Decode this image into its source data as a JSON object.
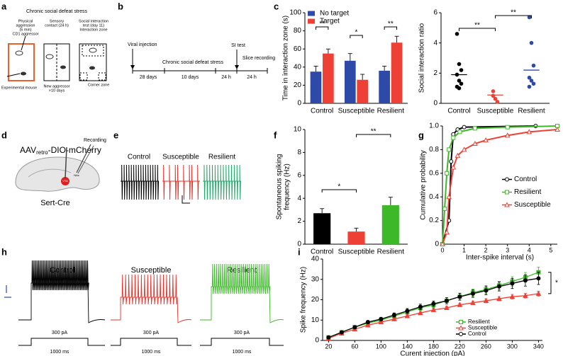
{
  "panel_labels": [
    "a",
    "b",
    "c",
    "d",
    "e",
    "f",
    "g",
    "h",
    "i"
  ],
  "panel_a": {
    "title": "Chronic social defeat stress",
    "box1": [
      "Physical",
      "aggression",
      "(5 min)",
      "CD1 aggressor"
    ],
    "box2": [
      "Sensory",
      "contact (24 h)"
    ],
    "box3": [
      "Social interaction",
      "test (day 11)",
      "Interaction zone"
    ],
    "experimental": "Experimental mouse",
    "new_aggressor": [
      "New aggressor",
      "×10 days"
    ],
    "corner": "Corner zone"
  },
  "panel_b": {
    "viral": "Viral injection",
    "csds": "Chronic social defeat stress",
    "si": "SI test",
    "slice": "Slice recording",
    "periods": [
      "28 days",
      "10 days",
      "24 h",
      "24 h"
    ]
  },
  "panel_d": {
    "vector": [
      "AAV",
      "retro",
      "-DIO-mCherry"
    ],
    "recording": "Recording",
    "line": "Sert-Cre",
    "regions": [
      "NAc",
      "VTA"
    ]
  },
  "panel_e": {
    "groups": [
      "Control",
      "Susceptible",
      "Resilient"
    ]
  },
  "panel_h": {
    "groups": [
      "Control",
      "Susceptible",
      "Resilient"
    ],
    "current": [
      "300 pA",
      "300 pA",
      "300 pA"
    ],
    "duration": [
      "1000 ms",
      "1000 ms",
      "1000 ms"
    ]
  },
  "chart_data": [
    {
      "type": "bar",
      "ylabel": "Time in interaction zone (s)",
      "categories": [
        "Control",
        "Susceptible",
        "Resilient"
      ],
      "series": [
        {
          "name": "No target",
          "color": "#2e4aa8",
          "values": [
            35,
            47,
            36
          ],
          "errors": [
            6,
            8,
            5
          ]
        },
        {
          "name": "Target",
          "color": "#ee4035",
          "values": [
            55,
            26,
            67
          ],
          "errors": [
            5,
            6,
            7
          ]
        }
      ],
      "ylim": [
        0,
        100
      ],
      "yticks": [
        0,
        20,
        40,
        60,
        80,
        100
      ],
      "legend": "upper left",
      "annotations": [
        "**",
        "*",
        "**"
      ]
    },
    {
      "type": "dot",
      "ylabel": "Social interaction ratio",
      "categories": [
        "Control",
        "Susceptible",
        "Resilient"
      ],
      "colors": [
        "#000000",
        "#ee4035",
        "#2e4aa8"
      ],
      "values": [
        1.9,
        0.55,
        2.2
      ],
      "points": [
        [
          4.6,
          2.6,
          2.2,
          1.9,
          1.5,
          1.3,
          1.1,
          1.0
        ],
        [
          0.8,
          0.3,
          0.1,
          0.5
        ],
        [
          5.7,
          4.0,
          2.5,
          1.7,
          1.5,
          1.3,
          1.1
        ]
      ],
      "ylim": [
        0,
        6
      ],
      "yticks": [
        0,
        2,
        4,
        6
      ],
      "annotations": [
        "**",
        "**"
      ]
    },
    {
      "type": "bar",
      "ylabel": [
        "Spontaneous spiking",
        "frequency (Hz)"
      ],
      "categories": [
        "Control",
        "Susceptible",
        "Resilient"
      ],
      "colors": [
        "#000000",
        "#ee4035",
        "#3cb828"
      ],
      "values": [
        2.7,
        1.1,
        3.4
      ],
      "errors": [
        0.4,
        0.3,
        0.7
      ],
      "ylim": [
        0,
        10
      ],
      "yticks": [
        0,
        2,
        4,
        6,
        8,
        10
      ],
      "annotations": [
        "*",
        "**"
      ]
    },
    {
      "type": "line",
      "xlabel": "Inter-spike interval (s)",
      "ylabel": "Cumulative probability",
      "xlim": [
        0,
        5.3
      ],
      "xticks": [
        0,
        1,
        2,
        3,
        4,
        5
      ],
      "ylim": [
        0,
        1
      ],
      "yticks": [
        0,
        0.2,
        0.4,
        0.6,
        0.8,
        {
          "value": 1,
          "label": "1.0"
        }
      ],
      "legend": "center right",
      "series": [
        {
          "name": "Control",
          "color": "#000000",
          "marker": "o",
          "x": [
            0,
            0.3,
            0.4,
            0.5,
            0.7,
            1,
            4.3
          ],
          "values": [
            0,
            0.2,
            0.7,
            0.93,
            0.97,
            0.99,
            1
          ]
        },
        {
          "name": "Resilient",
          "color": "#3cb828",
          "marker": "s",
          "x": [
            0,
            0.1,
            0.2,
            0.3,
            0.5,
            0.8,
            1.5,
            3,
            5.3
          ],
          "values": [
            0,
            0.3,
            0.6,
            0.8,
            0.9,
            0.95,
            0.98,
            0.99,
            1
          ]
        },
        {
          "name": "Susceptible",
          "color": "#ee4035",
          "marker": "^",
          "x": [
            0,
            0.2,
            0.3,
            0.5,
            0.7,
            1,
            1.5,
            2,
            3,
            4,
            5.3
          ],
          "values": [
            0,
            0.1,
            0.4,
            0.65,
            0.75,
            0.8,
            0.85,
            0.88,
            0.92,
            0.95,
            0.97
          ]
        }
      ]
    },
    {
      "type": "line",
      "xlabel": "Curent injection (pA)",
      "ylabel": "Spike frequency (Hz)",
      "x": [
        20,
        40,
        60,
        80,
        100,
        120,
        140,
        160,
        180,
        200,
        220,
        240,
        260,
        280,
        300,
        320,
        340
      ],
      "xlim": [
        11,
        346
      ],
      "xticks": [
        20,
        60,
        100,
        140,
        180,
        220,
        260,
        300,
        340
      ],
      "ylim": [
        0,
        40
      ],
      "yticks": [
        0,
        10,
        20,
        30,
        40
      ],
      "legend": "lower right",
      "annotations": [
        "*"
      ],
      "series": [
        {
          "name": "Resilient",
          "color": "#3cb828",
          "marker": "s",
          "values": [
            1.5,
            4,
            6.5,
            8.5,
            10,
            12,
            14,
            16,
            17.5,
            19.5,
            21.5,
            23.5,
            25,
            27,
            29,
            31,
            33.5
          ],
          "errors": [
            0.5,
            0.6,
            0.7,
            0.8,
            0.9,
            1,
            1.1,
            1.2,
            1.4,
            1.5,
            1.6,
            1.8,
            2,
            2.1,
            2.3,
            2.4,
            2.5
          ]
        },
        {
          "name": "Susceptible",
          "color": "#ee4035",
          "marker": "^",
          "values": [
            1,
            3.5,
            5.5,
            7.5,
            9,
            10.5,
            12,
            13.5,
            15,
            16,
            17.5,
            18.5,
            19.5,
            20.5,
            21.5,
            22,
            23
          ],
          "errors": [
            0.3,
            0.4,
            0.5,
            0.5,
            0.6,
            0.6,
            0.7,
            0.7,
            0.8,
            0.8,
            0.9,
            0.9,
            1,
            1,
            1.1,
            1.1,
            1.2
          ]
        },
        {
          "name": "Control",
          "color": "#000000",
          "marker": "o",
          "values": [
            1.5,
            4,
            6.5,
            9,
            10.5,
            12.5,
            14.5,
            16.5,
            18,
            19.5,
            21.5,
            23,
            24.5,
            26.5,
            28,
            29.5,
            30.5
          ],
          "errors": [
            0.5,
            0.6,
            0.8,
            0.8,
            0.9,
            1,
            1.2,
            1.3,
            1.4,
            1.5,
            1.7,
            1.8,
            2,
            2.2,
            2.5,
            2.8,
            3
          ]
        }
      ]
    }
  ]
}
